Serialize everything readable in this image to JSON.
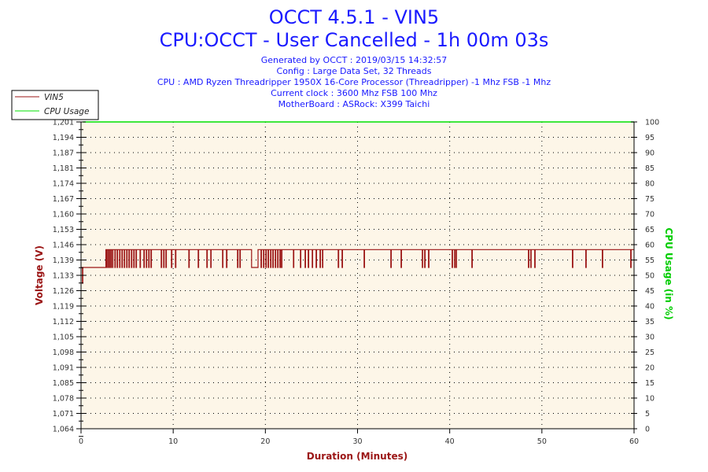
{
  "chart_data": {
    "type": "line",
    "title": "OCCT 4.5.1 - VIN5",
    "subtitle": "CPU:OCCT - User Cancelled - 1h 00m 03s",
    "info_lines": [
      "Generated by OCCT : 2019/03/15 14:32:57",
      "Config : Large Data Set, 32 Threads",
      "CPU : AMD Ryzen Threadripper 1950X 16-Core Processor (Threadripper) -1 Mhz FSB -1 Mhz",
      "Current clock : 3600 Mhz FSB 100 Mhz",
      "MotherBoard : ASRock: X399 Taichi"
    ],
    "xlabel": "Duration (Minutes)",
    "ylabel": "Voltage (V)",
    "y2label": "CPU Usage (in %)",
    "xlim": [
      0,
      60
    ],
    "ylim": [
      1.064,
      1.201
    ],
    "y2lim": [
      0,
      100
    ],
    "x_ticks": [
      "0",
      "10",
      "20",
      "30",
      "40",
      "50",
      "60"
    ],
    "y_ticks": [
      "1,064",
      "1,071",
      "1,078",
      "1,085",
      "1,091",
      "1,098",
      "1,105",
      "1,112",
      "1,119",
      "1,126",
      "1,133",
      "1,139",
      "1,146",
      "1,153",
      "1,160",
      "1,167",
      "1,174",
      "1,181",
      "1,187",
      "1,194",
      "1,201"
    ],
    "y2_ticks": [
      "0",
      "5",
      "10",
      "15",
      "20",
      "25",
      "30",
      "35",
      "40",
      "45",
      "50",
      "55",
      "60",
      "65",
      "70",
      "75",
      "80",
      "85",
      "90",
      "95",
      "100"
    ],
    "grid": "dotted",
    "legend_placement": "top-left",
    "colors": {
      "vin5": "#9b1515",
      "cpu": "#00e000",
      "plot_bg": "#fdf6e8",
      "title": "#1a1aff",
      "ylabel": "#9b1515",
      "y2label": "#00cc00"
    },
    "series": [
      {
        "name": "VIN5",
        "initial_value": 1.136,
        "initial_dip_value": 1.129,
        "high_value": 1.144,
        "low_value": 1.136,
        "step_up_minute": 2.7,
        "low_segment_minutes": [
          18.5,
          19.2
        ],
        "drop_minutes": [
          2.73,
          2.9,
          3.07,
          3.24,
          3.41,
          3.67,
          3.92,
          4.18,
          4.44,
          4.69,
          4.95,
          5.2,
          5.46,
          5.72,
          5.97,
          6.4,
          6.82,
          7.08,
          7.34,
          7.59,
          8.7,
          8.96,
          9.21,
          9.81,
          10.24,
          11.69,
          12.71,
          13.65,
          14.07,
          15.35,
          15.78,
          16.98,
          17.23,
          19.53,
          19.79,
          20.05,
          20.3,
          20.56,
          20.81,
          21.07,
          21.33,
          21.58,
          21.75,
          23.04,
          23.8,
          24.31,
          24.65,
          25.08,
          25.5,
          25.93,
          26.19,
          27.9,
          28.32,
          30.71,
          33.61,
          34.72,
          37.02,
          37.28,
          37.7,
          40.26,
          40.52,
          40.69,
          42.4,
          48.54,
          48.79,
          49.22,
          53.31,
          54.76,
          56.55,
          59.63
        ]
      },
      {
        "name": "CPU Usage",
        "value": 100,
        "x_range": [
          0.2,
          60
        ]
      }
    ]
  }
}
